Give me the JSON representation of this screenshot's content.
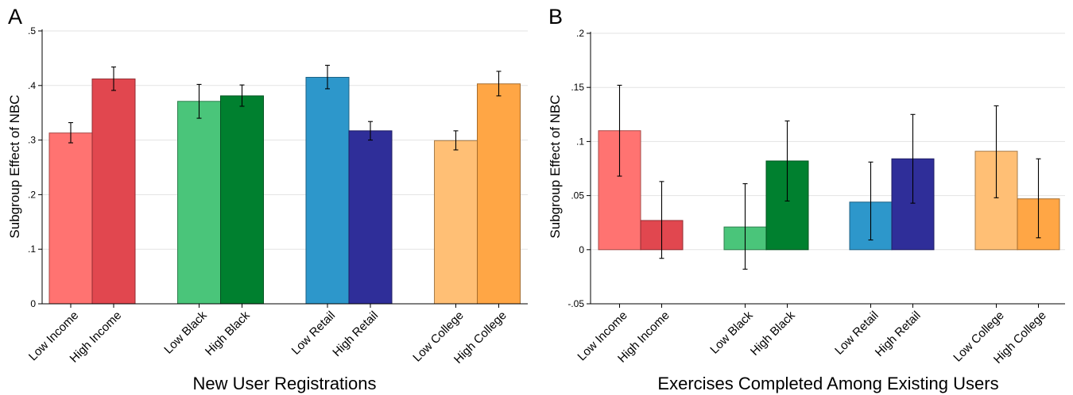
{
  "chart_data": [
    {
      "type": "bar",
      "panel": "A",
      "xlabel": "New User Registrations",
      "ylabel": "Subgroup Effect of NBC",
      "ylim": [
        0,
        0.5
      ],
      "yticks": [
        0,
        0.1,
        0.2,
        0.3,
        0.4,
        0.5
      ],
      "ytick_labels": [
        "0",
        ".1",
        ".2",
        ".3",
        ".4",
        ".5"
      ],
      "grid": true,
      "error_bars": true,
      "groups": [
        {
          "bars": [
            {
              "label": "Low Income",
              "value": 0.313,
              "ci": [
                0.295,
                0.332
              ],
              "color": "#ff7371"
            },
            {
              "label": "High Income",
              "value": 0.412,
              "ci": [
                0.391,
                0.434
              ],
              "color": "#e1474f"
            }
          ]
        },
        {
          "bars": [
            {
              "label": "Low Black",
              "value": 0.371,
              "ci": [
                0.34,
                0.402
              ],
              "color": "#4ac57a"
            },
            {
              "label": "High Black",
              "value": 0.381,
              "ci": [
                0.362,
                0.401
              ],
              "color": "#00802f"
            }
          ]
        },
        {
          "bars": [
            {
              "label": "Low Retail",
              "value": 0.415,
              "ci": [
                0.394,
                0.437
              ],
              "color": "#2d97cb"
            },
            {
              "label": "High Retail",
              "value": 0.317,
              "ci": [
                0.3,
                0.334
              ],
              "color": "#2f2e99"
            }
          ]
        },
        {
          "bars": [
            {
              "label": "Low College",
              "value": 0.299,
              "ci": [
                0.282,
                0.317
              ],
              "color": "#ffbf75"
            },
            {
              "label": "High College",
              "value": 0.403,
              "ci": [
                0.381,
                0.426
              ],
              "color": "#ffa645"
            }
          ]
        }
      ]
    },
    {
      "type": "bar",
      "panel": "B",
      "xlabel": "Exercises Completed Among Existing Users",
      "ylabel": "Subgroup Effect of NBC",
      "ylim": [
        -0.05,
        0.2
      ],
      "yticks": [
        -0.05,
        0,
        0.05,
        0.1,
        0.15,
        0.2
      ],
      "ytick_labels": [
        "-.05",
        "0",
        ".05",
        ".1",
        ".15",
        ".2"
      ],
      "grid": true,
      "error_bars": true,
      "groups": [
        {
          "bars": [
            {
              "label": "Low Income",
              "value": 0.11,
              "ci": [
                0.068,
                0.152
              ],
              "color": "#ff7371"
            },
            {
              "label": "High Income",
              "value": 0.027,
              "ci": [
                -0.008,
                0.063
              ],
              "color": "#e1474f"
            }
          ]
        },
        {
          "bars": [
            {
              "label": "Low Black",
              "value": 0.021,
              "ci": [
                -0.018,
                0.061
              ],
              "color": "#4ac57a"
            },
            {
              "label": "High Black",
              "value": 0.082,
              "ci": [
                0.045,
                0.119
              ],
              "color": "#00802f"
            }
          ]
        },
        {
          "bars": [
            {
              "label": "Low Retail",
              "value": 0.044,
              "ci": [
                0.009,
                0.081
              ],
              "color": "#2d97cb"
            },
            {
              "label": "High Retail",
              "value": 0.084,
              "ci": [
                0.043,
                0.125
              ],
              "color": "#2f2e99"
            }
          ]
        },
        {
          "bars": [
            {
              "label": "Low College",
              "value": 0.091,
              "ci": [
                0.048,
                0.133
              ],
              "color": "#ffbf75"
            },
            {
              "label": "High College",
              "value": 0.047,
              "ci": [
                0.011,
                0.084
              ],
              "color": "#ffa645"
            }
          ]
        }
      ]
    }
  ]
}
